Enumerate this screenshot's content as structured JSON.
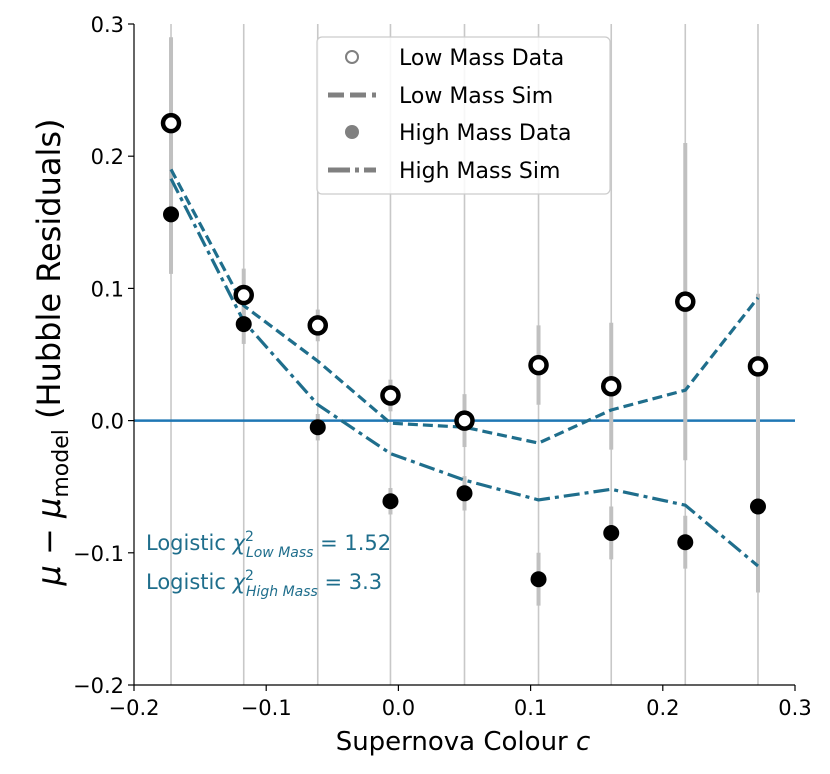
{
  "chart_data": {
    "type": "scatter",
    "title": "",
    "xlabel": "Supernova Colour c",
    "ylabel": "μ − μ_model (Hubble Residuals)",
    "ylabel_parts": {
      "mu": "μ − μ",
      "sub": "model",
      "rest": " (Hubble Residuals)"
    },
    "xlabel_parts": {
      "text": "Supernova Colour ",
      "var": "c"
    },
    "xlim": [
      -0.2,
      0.3
    ],
    "ylim": [
      -0.2,
      0.3
    ],
    "xticks": [
      -0.2,
      -0.1,
      0.0,
      0.1,
      0.2,
      0.3
    ],
    "xtick_labels": [
      "−0.2",
      "−0.1",
      "0.0",
      "0.1",
      "0.2",
      "0.3"
    ],
    "yticks": [
      -0.2,
      -0.1,
      0.0,
      0.1,
      0.2,
      0.3
    ],
    "ytick_labels": [
      "−0.2",
      "−0.1",
      "0.0",
      "0.1",
      "0.2",
      "0.3"
    ],
    "grid": "vertical",
    "zero_line": 0.0,
    "legend_position": "top-center",
    "x": [
      -0.172,
      -0.117,
      -0.061,
      -0.006,
      0.05,
      0.106,
      0.161,
      0.217,
      0.272
    ],
    "series": [
      {
        "name": "Low Mass Data",
        "kind": "points-open",
        "values": [
          0.225,
          0.095,
          0.072,
          0.019,
          0.0,
          0.042,
          0.026,
          0.09,
          0.041
        ],
        "errors": [
          0.065,
          0.02,
          0.012,
          0.012,
          0.02,
          0.03,
          0.048,
          0.12,
          0.055
        ]
      },
      {
        "name": "Low Mass Sim",
        "kind": "dashed",
        "values": [
          0.19,
          0.087,
          0.045,
          -0.002,
          -0.005,
          -0.017,
          0.008,
          0.023,
          0.093
        ]
      },
      {
        "name": "High Mass Data",
        "kind": "points-filled",
        "values": [
          0.156,
          0.073,
          -0.005,
          -0.061,
          -0.055,
          -0.12,
          -0.085,
          -0.092,
          -0.065
        ],
        "errors": [
          0.045,
          0.015,
          0.01,
          0.01,
          0.013,
          0.02,
          0.02,
          0.02,
          0.065
        ]
      },
      {
        "name": "High Mass Sim",
        "kind": "dashdot",
        "values": [
          0.183,
          0.075,
          0.012,
          -0.025,
          -0.045,
          -0.06,
          -0.052,
          -0.064,
          -0.11
        ]
      }
    ],
    "annotations": [
      {
        "prefix": "Logistic ",
        "chi": "χ",
        "sup": "2",
        "sub": "Low Mass",
        "suffix": " =  1.52"
      },
      {
        "prefix": "Logistic ",
        "chi": "χ",
        "sup": "2",
        "sub": "High Mass",
        "suffix": " =  3.3"
      }
    ],
    "colors": {
      "sim": "#1f6e8c",
      "zero_line": "#1f77b4",
      "errorbar": "#c0c0c0",
      "grid": "#c8c8c8",
      "data": "#000000",
      "legend_text": "#000000",
      "legend_marker": "#808080",
      "annotation": "#1f6e8c"
    }
  }
}
